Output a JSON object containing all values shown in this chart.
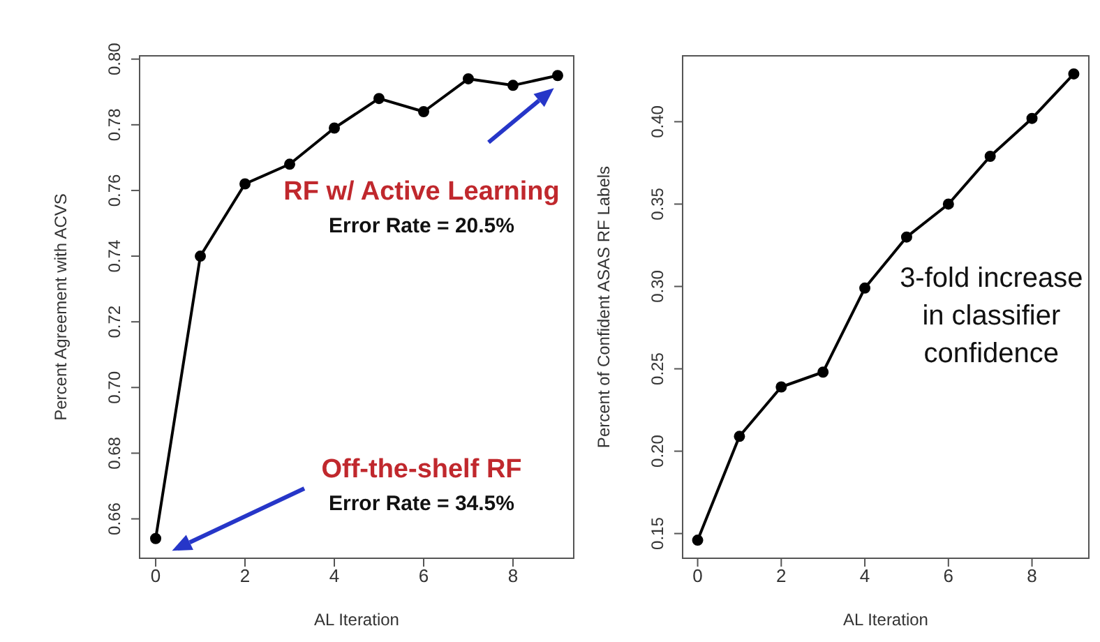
{
  "chart_data": [
    {
      "type": "line",
      "xlabel": "AL Iteration",
      "ylabel": "Percent Agreement with ACVS",
      "x": [
        0,
        1,
        2,
        3,
        4,
        5,
        6,
        7,
        8,
        9
      ],
      "values": [
        0.654,
        0.74,
        0.762,
        0.768,
        0.779,
        0.788,
        0.784,
        0.794,
        0.792,
        0.795
      ],
      "color": "#000000",
      "marker": "circle",
      "line_style": "solid",
      "xlim": [
        -0.36,
        9.36
      ],
      "xticks": [
        0,
        2,
        4,
        6,
        8
      ],
      "ylim": [
        0.648,
        0.801
      ],
      "yticks": [
        0.66,
        0.68,
        {
          "value": 0.7,
          "label": "0.70"
        },
        0.72,
        0.74,
        0.76,
        0.78,
        {
          "value": 0.8,
          "label": "0.80"
        }
      ],
      "annotations": [
        "RF w/ Active Learning",
        "Error Rate = 20.5%",
        "Off-the-shelf RF",
        "Error Rate = 34.5%"
      ]
    },
    {
      "type": "line",
      "xlabel": "AL Iteration",
      "ylabel": "Percent of Confident ASAS RF Labels",
      "x": [
        0,
        1,
        2,
        3,
        4,
        5,
        6,
        7,
        8,
        9
      ],
      "values": [
        0.146,
        0.209,
        0.239,
        0.248,
        0.299,
        0.33,
        0.35,
        0.379,
        0.402,
        0.429
      ],
      "color": "#000000",
      "marker": "circle",
      "line_style": "solid",
      "xlim": [
        -0.36,
        9.36
      ],
      "xticks": [
        0,
        2,
        4,
        6,
        8
      ],
      "ylim": [
        0.135,
        0.44
      ],
      "yticks": [
        0.15,
        {
          "value": 0.2,
          "label": "0.20"
        },
        0.25,
        {
          "value": 0.3,
          "label": "0.30"
        },
        0.35,
        {
          "value": 0.4,
          "label": "0.40"
        }
      ],
      "annotations": [
        "3-fold increase in classifier confidence"
      ]
    }
  ]
}
